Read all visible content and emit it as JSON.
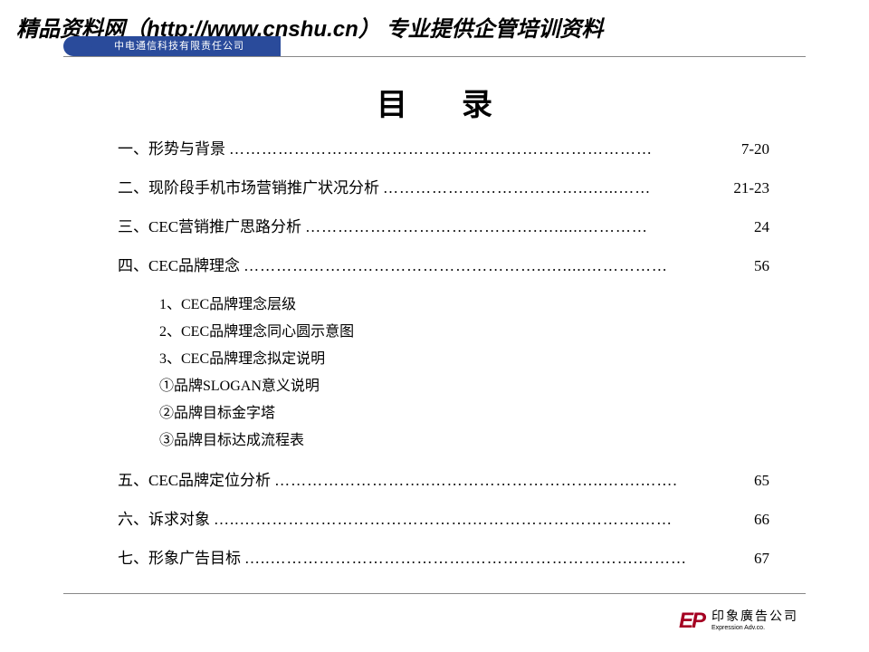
{
  "watermark": "精品资料网（http://www.cnshu.cn） 专业提供企管培训资料",
  "header_company": "中电通信科技有限责任公司",
  "title": "目录",
  "toc": [
    {
      "label": "一、形势与背景",
      "page": "7-20"
    },
    {
      "label": "二、现阶段手机市场营销推广状况分析",
      "page": "21-23"
    },
    {
      "label": "三、CEC营销推广思路分析",
      "page": "24"
    },
    {
      "label": "四、CEC品牌理念",
      "page": "56"
    }
  ],
  "subitems": [
    "1、CEC品牌理念层级",
    "2、CEC品牌理念同心圆示意图",
    "3、CEC品牌理念拟定说明",
    "①品牌SLOGAN意义说明",
    "②品牌目标金字塔",
    "③品牌目标达成流程表"
  ],
  "toc2": [
    {
      "label": "五、CEC品牌定位分析",
      "page": "65"
    },
    {
      "label": "六、诉求对象",
      "page": "66"
    },
    {
      "label": "七、形象广告目标",
      "page": "67"
    }
  ],
  "footer": {
    "mark": "EP",
    "cn": "印象廣告公司",
    "en": "Expression Adv.co."
  },
  "colors": {
    "accent": "#2a4b9b",
    "logo": "#a50022",
    "text": "#000000",
    "rule": "#888888",
    "bg": "#ffffff"
  }
}
